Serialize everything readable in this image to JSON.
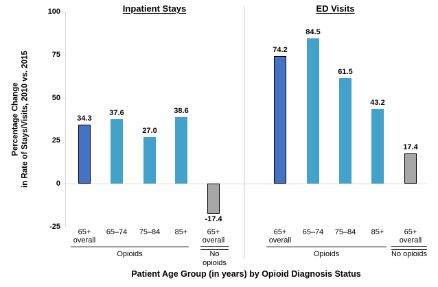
{
  "y_axis": {
    "label_line1": "Percentage Change",
    "label_line2": "in Rate of Stays/Visits, 2010 vs. 2015"
  },
  "x_axis_title": "Patient Age Group (in years) by Opioid Diagnosis Status",
  "chart_data": {
    "type": "bar",
    "title": "",
    "ylabel": "Percentage Change in Rate of Stays/Visits, 2010 vs. 2015",
    "xlabel": "Patient Age Group (in years) by Opioid Diagnosis Status",
    "ylim": [
      -25,
      100
    ],
    "yticks": [
      100,
      75,
      50,
      25,
      0,
      -25
    ],
    "grid": "zero-line only, no other gridlines, light gray axis",
    "legend": "none (color-coded bars)",
    "colors": {
      "overall_opioids": "#4472c4",
      "age_opioids": "#43a2c9",
      "no_opioids": "#a6a6a6",
      "axis_line": "#d9d9d9",
      "divider": "#c8c8c8"
    },
    "panels": [
      {
        "title": "Inpatient Stays",
        "groups": [
          {
            "label": "Opioids",
            "double_line": false
          },
          {
            "label": "No opioids",
            "double_line": true
          }
        ],
        "bars": [
          {
            "age_label": [
              "65+",
              "overall"
            ],
            "group": "Opioids",
            "value": 34.3,
            "display": "34.3",
            "color": "overall_opioids",
            "outlined": true
          },
          {
            "age_label": [
              "65–74"
            ],
            "group": "Opioids",
            "value": 37.6,
            "display": "37.6",
            "color": "age_opioids",
            "outlined": false
          },
          {
            "age_label": [
              "75–84"
            ],
            "group": "Opioids",
            "value": 27.0,
            "display": "27.0",
            "color": "age_opioids",
            "outlined": false
          },
          {
            "age_label": [
              "85+"
            ],
            "group": "Opioids",
            "value": 38.6,
            "display": "38.6",
            "color": "age_opioids",
            "outlined": false
          },
          {
            "age_label": [
              "65+",
              "overall"
            ],
            "group": "No opioids",
            "value": -17.4,
            "display": "-17.4",
            "color": "no_opioids",
            "outlined": true
          }
        ]
      },
      {
        "title": "ED Visits",
        "groups": [
          {
            "label": "Opioids",
            "double_line": false
          },
          {
            "label": "No opioids",
            "double_line": true
          }
        ],
        "bars": [
          {
            "age_label": [
              "65+",
              "overall"
            ],
            "group": "Opioids",
            "value": 74.2,
            "display": "74.2",
            "color": "overall_opioids",
            "outlined": true
          },
          {
            "age_label": [
              "65–74"
            ],
            "group": "Opioids",
            "value": 84.5,
            "display": "84.5",
            "color": "age_opioids",
            "outlined": false
          },
          {
            "age_label": [
              "75–84"
            ],
            "group": "Opioids",
            "value": 61.5,
            "display": "61.5",
            "color": "age_opioids",
            "outlined": false
          },
          {
            "age_label": [
              "85+"
            ],
            "group": "Opioids",
            "value": 43.2,
            "display": "43.2",
            "color": "age_opioids",
            "outlined": false
          },
          {
            "age_label": [
              "65+",
              "overall"
            ],
            "group": "No opioids",
            "value": 17.4,
            "display": "17.4",
            "color": "no_opioids",
            "outlined": true
          }
        ]
      }
    ]
  }
}
